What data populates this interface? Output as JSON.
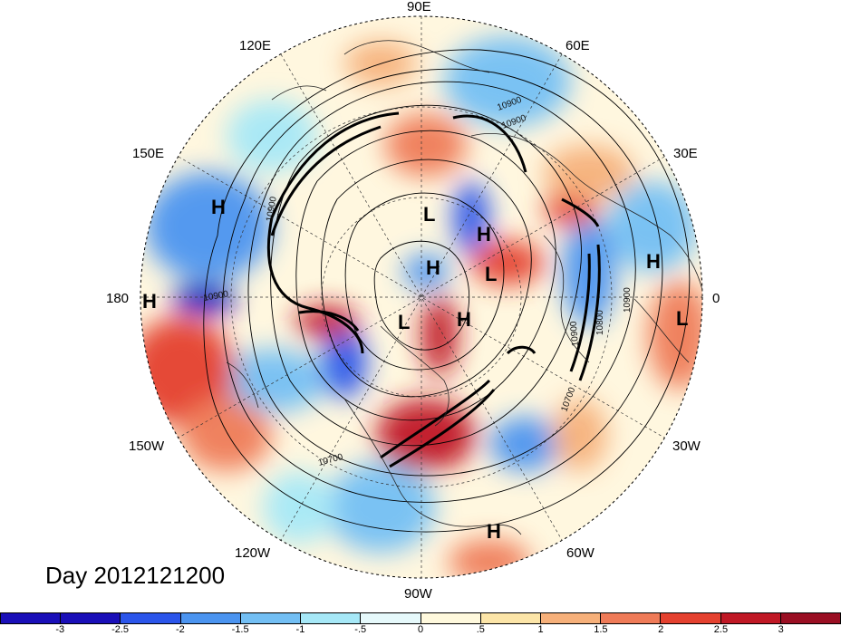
{
  "title": "Day 2012121200",
  "longitude_labels": {
    "e90": "90E",
    "e60": "60E",
    "e120": "120E",
    "e30": "30E",
    "e150": "150E",
    "zero": "0",
    "w180": "180",
    "w150": "150W",
    "w30": "30W",
    "w120": "120W",
    "w60": "60W",
    "w90": "90W"
  },
  "pressure_centers": {
    "h_pacific": "H",
    "h_dateline": "H",
    "l_upper": "L",
    "h_upper": "H",
    "h_center": "H",
    "l_center": "L",
    "l_lower": "L",
    "h_lower": "H",
    "h_atlantic": "H",
    "l_atlantic": "L",
    "h_caribbean": "H"
  },
  "contour_labels": {
    "c1": "10900",
    "c2": "10900",
    "c3": "10900",
    "c4": "10900",
    "c5": "10800",
    "c6": "10900",
    "c7": "10700",
    "c8": "10700",
    "c9": "10900"
  },
  "colorbar": {
    "colors": [
      "#1a0fb8",
      "#2b55ea",
      "#4b94f0",
      "#73bff4",
      "#a6e8f7",
      "#e6f9fb",
      "#fff9dd",
      "#fce5a8",
      "#f6b07a",
      "#ef7b58",
      "#e4412f",
      "#c01825",
      "#9a0f23"
    ],
    "ticks": [
      "-3",
      "-2.5",
      "-2",
      "-1.5",
      "-1",
      "-.5",
      "0",
      ".5",
      "1",
      "1.5",
      "2",
      "2.5",
      "3"
    ]
  }
}
